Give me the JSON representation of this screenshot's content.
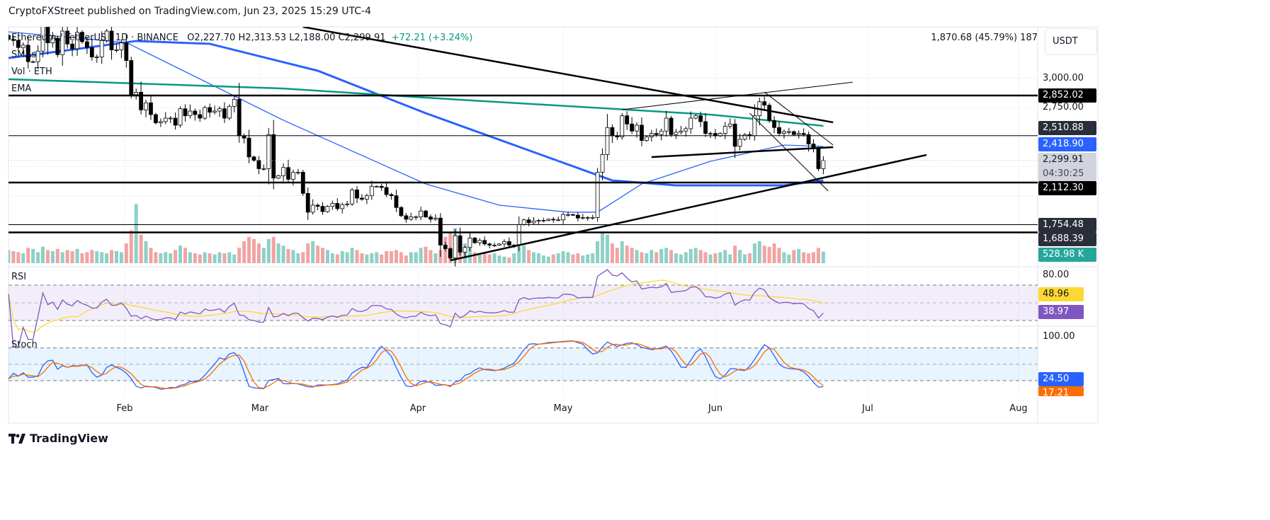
{
  "header": {
    "published": "CryptoFXStreet published on TradingView.com, Jun 23, 2025 15:29 UTC-4"
  },
  "legend": {
    "symbol": "Ethereum / TetherUS · 1D · BINANCE",
    "ohlc": "O2,227.70  H2,313.53  L2,188.00  C2,299.91",
    "change": "+72.21 (+3.24%)",
    "smas": "SMAs",
    "vol": "Vol · ETH",
    "ema": "EMA",
    "rsi": "RSI",
    "stoch": "Stoch"
  },
  "measure": "1,870.68 (45.79%) 187",
  "currency_button": "USDT",
  "price_axis": {
    "ticks": [
      "3,000.00",
      "2,750.00"
    ],
    "badges": {
      "l1": "2,852.02",
      "l2": "2,510.88",
      "sma": "2,418.90",
      "last": "2,299.91",
      "countdown": "04:30:25",
      "l3": "2,112.30",
      "l4": "1,754.48",
      "l5": "1,688.39",
      "vol": "528.98 K"
    }
  },
  "rsi_axis": {
    "tick": "80.00",
    "ma": "48.96",
    "rsi": "38.97"
  },
  "stoch_axis": {
    "tick": "100.00",
    "k": "24.50",
    "d": "17.21"
  },
  "time_axis": [
    "Feb",
    "Mar",
    "Apr",
    "May",
    "Jun",
    "Jul",
    "Aug"
  ],
  "footer": {
    "brand": "TradingView"
  },
  "colors": {
    "up": "#ffffff",
    "down": "#000000",
    "vol_up": "#8ed0c6",
    "vol_down": "#f2a3a3",
    "sma_thin": "#2962ff",
    "sma_thick": "#2962ff",
    "ema": "#089981",
    "rsi": "#7e57c2",
    "rsi_ma": "#fdd835",
    "stoch_k": "#2962ff",
    "stoch_d": "#ff6d00",
    "teal": "#26a69a"
  },
  "chart_data": {
    "type": "candlestick",
    "symbol": "ETHUSDT",
    "interval": "1D",
    "start_date": "2025-01-08",
    "ylim": [
      1400,
      3450
    ],
    "closes": [
      3330,
      3320,
      3260,
      3280,
      3140,
      3140,
      3230,
      3450,
      3300,
      3340,
      3200,
      3400,
      3290,
      3250,
      3390,
      3310,
      3260,
      3180,
      3180,
      3320,
      3400,
      3240,
      3240,
      3300,
      3150,
      2860,
      2880,
      2730,
      2790,
      2690,
      2620,
      2630,
      2660,
      2660,
      2600,
      2740,
      2680,
      2720,
      2690,
      2660,
      2750,
      2710,
      2720,
      2740,
      2660,
      2760,
      2820,
      2510,
      2490,
      2330,
      2300,
      2230,
      2230,
      2520,
      2150,
      2170,
      2240,
      2140,
      2200,
      2200,
      2020,
      1860,
      1920,
      1910,
      1865,
      1910,
      1935,
      1890,
      1925,
      1930,
      2050,
      1980,
      1970,
      2000,
      2080,
      2080,
      2070,
      2010,
      2000,
      1900,
      1830,
      1800,
      1820,
      1820,
      1870,
      1820,
      1800,
      1810,
      1580,
      1550,
      1470,
      1660,
      1520,
      1560,
      1640,
      1600,
      1620,
      1590,
      1580,
      1580,
      1590,
      1610,
      1580,
      1580,
      1755,
      1795,
      1770,
      1785,
      1790,
      1790,
      1800,
      1795,
      1795,
      1840,
      1840,
      1835,
      1810,
      1815,
      1815,
      1815,
      2200,
      2350,
      2580,
      2510,
      2500,
      2680,
      2610,
      2550,
      2600,
      2470,
      2500,
      2530,
      2520,
      2550,
      2660,
      2520,
      2540,
      2550,
      2570,
      2660,
      2680,
      2630,
      2530,
      2530,
      2510,
      2530,
      2590,
      2610,
      2420,
      2480,
      2520,
      2510,
      2680,
      2800,
      2770,
      2640,
      2580,
      2530,
      2545,
      2545,
      2520,
      2530,
      2520,
      2440,
      2400,
      2230,
      2299.91
    ],
    "volumes_k": [
      600,
      550,
      500,
      450,
      700,
      650,
      500,
      750,
      600,
      550,
      650,
      500,
      600,
      550,
      650,
      450,
      500,
      600,
      550,
      500,
      450,
      600,
      550,
      500,
      900,
      1500,
      2700,
      1300,
      1000,
      700,
      500,
      450,
      500,
      450,
      600,
      800,
      700,
      500,
      450,
      400,
      500,
      450,
      400,
      500,
      450,
      500,
      400,
      700,
      1000,
      1200,
      1100,
      900,
      700,
      1100,
      1200,
      900,
      800,
      650,
      600,
      450,
      500,
      900,
      1000,
      800,
      700,
      600,
      450,
      400,
      550,
      500,
      700,
      600,
      450,
      400,
      450,
      500,
      400,
      550,
      550,
      600,
      500,
      350,
      500,
      500,
      700,
      750,
      600,
      450,
      600,
      1200,
      1400,
      1600,
      1000,
      900,
      700,
      500,
      450,
      500,
      400,
      450,
      350,
      300,
      250,
      450,
      750,
      800,
      600,
      500,
      450,
      350,
      300,
      400,
      450,
      550,
      500,
      400,
      450,
      350,
      400,
      450,
      1000,
      1400,
      1300,
      900,
      700,
      1000,
      800,
      700,
      600,
      500,
      450,
      600,
      500,
      650,
      700,
      600,
      450,
      400,
      500,
      650,
      700,
      600,
      500,
      400,
      450,
      500,
      600,
      400,
      800,
      600,
      400,
      450,
      900,
      1000,
      800,
      750,
      900,
      700,
      500,
      400,
      600,
      650,
      500,
      450,
      500,
      700,
      528.98
    ],
    "moving_averages": [
      {
        "id": "sma-thin",
        "points": [
          [
            "2025-01-08",
            3394
          ],
          [
            "2025-02-01",
            3303
          ],
          [
            "2025-03-05",
            2642
          ],
          [
            "2025-04-03",
            2100
          ],
          [
            "2025-04-18",
            1920
          ],
          [
            "2025-05-02",
            1860
          ],
          [
            "2025-05-08",
            1860
          ],
          [
            "2025-05-17",
            2100
          ],
          [
            "2025-05-31",
            2293
          ],
          [
            "2025-06-15",
            2431
          ],
          [
            "2025-06-23",
            2418.9
          ]
        ]
      },
      {
        "id": "sma-thick",
        "points": [
          [
            "2025-01-08",
            3171
          ],
          [
            "2025-01-21",
            3243
          ],
          [
            "2025-02-03",
            3316
          ],
          [
            "2025-02-18",
            3292
          ],
          [
            "2025-03-12",
            3063
          ],
          [
            "2025-04-03",
            2702
          ],
          [
            "2025-04-25",
            2371
          ],
          [
            "2025-05-11",
            2130
          ],
          [
            "2025-05-24",
            2088
          ],
          [
            "2025-06-15",
            2088
          ],
          [
            "2025-06-23",
            2130
          ]
        ]
      },
      {
        "id": "ema",
        "points": [
          [
            "2025-01-08",
            2991
          ],
          [
            "2025-02-03",
            2955
          ],
          [
            "2025-03-05",
            2912
          ],
          [
            "2025-04-03",
            2834
          ],
          [
            "2025-05-02",
            2762
          ],
          [
            "2025-05-31",
            2690
          ],
          [
            "2025-06-23",
            2594
          ]
        ]
      }
    ],
    "horizontal_levels": [
      {
        "price": 2852.02,
        "weight": "thick"
      },
      {
        "price": 2510.88,
        "weight": "thin"
      },
      {
        "price": 2112.3,
        "weight": "thick"
      },
      {
        "price": 1754.48,
        "weight": "thin"
      },
      {
        "price": 1688.39,
        "weight": "thick"
      }
    ],
    "trendlines": [
      {
        "from": [
          "2025-03-09",
          3436
        ],
        "to": [
          "2025-06-25",
          2624
        ],
        "weight": "thick"
      },
      {
        "from": [
          "2025-04-08",
          1450
        ],
        "to": [
          "2025-07-14",
          2347
        ],
        "weight": "thick"
      },
      {
        "from": [
          "2025-05-13",
          2732
        ],
        "to": [
          "2025-06-29",
          2966
        ],
        "weight": "thin"
      },
      {
        "from": [
          "2025-05-19",
          2329
        ],
        "to": [
          "2025-06-25",
          2413
        ],
        "weight": "thick"
      },
      {
        "from": [
          "2025-06-11",
          2882
        ],
        "to": [
          "2025-06-25",
          2431
        ],
        "weight": "thin"
      },
      {
        "from": [
          "2025-06-08",
          2702
        ],
        "to": [
          "2025-06-24",
          2040
        ],
        "weight": "thin"
      }
    ],
    "rsi": {
      "levels": [
        70,
        50,
        30
      ],
      "last": 38.97,
      "ma_last": 48.96
    },
    "stoch": {
      "levels": [
        80,
        50,
        20
      ],
      "k_last": 24.5,
      "d_last": 17.21
    }
  }
}
